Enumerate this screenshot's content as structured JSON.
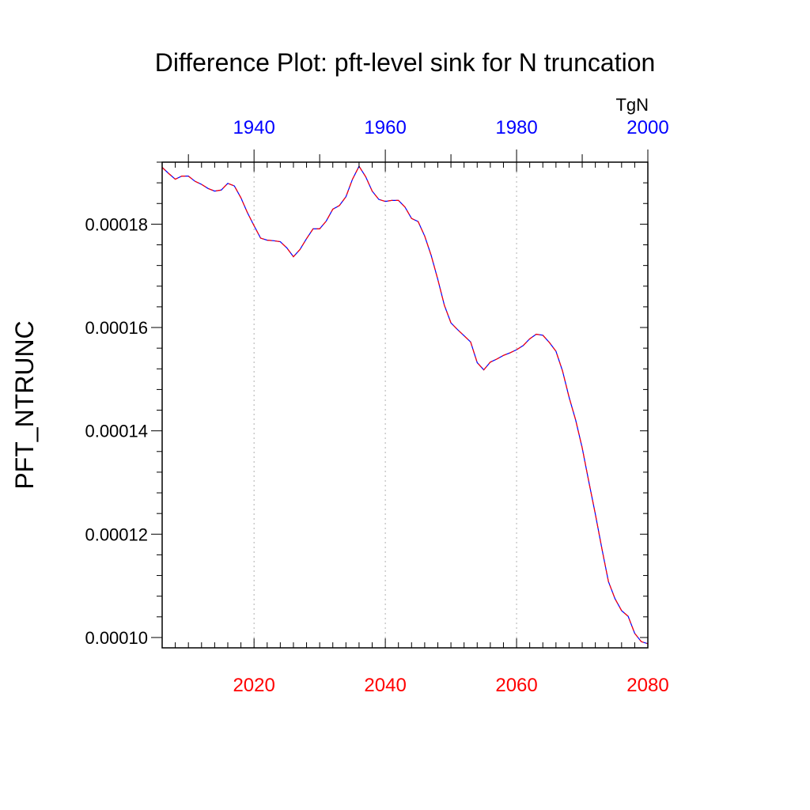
{
  "chart_data": {
    "type": "line",
    "title": "Difference Plot: pft-level sink for N truncation",
    "ylabel": "PFT_NTRUNC",
    "units": "TgN",
    "xlim": [
      2006,
      2080
    ],
    "ylim": [
      9.8e-05,
      0.000192
    ],
    "bottom_axis": {
      "ticks": [
        2020,
        2040,
        2060,
        2080
      ],
      "tick_labels": [
        "2020",
        "2040",
        "2060",
        "2080"
      ],
      "color": "#ff0000"
    },
    "top_axis": {
      "offset_years": -80,
      "ticks": [
        1940,
        1960,
        1980,
        2000
      ],
      "tick_labels": [
        "1940",
        "1960",
        "1980",
        "2000"
      ],
      "color": "#0000ff"
    },
    "y_ticks": [
      0.0001,
      0.00012,
      0.00014,
      0.00016,
      0.00018
    ],
    "y_tick_labels": [
      "0.00010",
      "0.00012",
      "0.00014",
      "0.00016",
      "0.00018"
    ],
    "grid": "vertical dashed at major bottom-axis ticks",
    "series": [
      {
        "color": "#0000ff",
        "dash": "solid",
        "x": [
          2006,
          2007,
          2008,
          2009,
          2010,
          2011,
          2012,
          2013,
          2014,
          2015,
          2016,
          2017,
          2018,
          2019,
          2020,
          2021,
          2022,
          2023,
          2024,
          2025,
          2026,
          2027,
          2028,
          2029,
          2030,
          2031,
          2032,
          2033,
          2034,
          2035,
          2036,
          2037,
          2038,
          2039,
          2040,
          2041,
          2042,
          2043,
          2044,
          2045,
          2046,
          2047,
          2048,
          2049,
          2050,
          2051,
          2052,
          2053,
          2054,
          2055,
          2056,
          2057,
          2058,
          2059,
          2060,
          2061,
          2062,
          2063,
          2064,
          2065,
          2066,
          2067,
          2068,
          2069,
          2070,
          2071,
          2072,
          2073,
          2074,
          2075,
          2076,
          2077,
          2078,
          2079,
          2080
        ],
        "y": [
          0.000191,
          0.0001898,
          0.0001887,
          0.0001893,
          0.0001893,
          0.0001883,
          0.0001877,
          0.0001869,
          0.0001864,
          0.0001866,
          0.0001879,
          0.0001874,
          0.0001851,
          0.0001822,
          0.0001797,
          0.0001773,
          0.0001769,
          0.0001768,
          0.0001766,
          0.0001754,
          0.0001737,
          0.0001751,
          0.0001772,
          0.0001791,
          0.0001791,
          0.0001806,
          0.0001829,
          0.0001836,
          0.0001853,
          0.0001887,
          0.0001912,
          0.0001892,
          0.0001864,
          0.0001848,
          0.0001844,
          0.0001846,
          0.0001846,
          0.0001833,
          0.0001811,
          0.0001805,
          0.0001777,
          0.0001739,
          0.0001693,
          0.0001643,
          0.0001609,
          0.0001596,
          0.0001584,
          0.0001572,
          0.0001532,
          0.0001518,
          0.0001533,
          0.0001539,
          0.0001546,
          0.0001551,
          0.0001557,
          0.0001565,
          0.0001578,
          0.0001587,
          0.0001585,
          0.0001571,
          0.0001554,
          0.0001516,
          0.0001465,
          0.0001421,
          0.0001367,
          0.0001302,
          0.0001239,
          0.0001172,
          0.0001108,
          0.0001075,
          0.0001052,
          0.0001041,
          0.0001008,
          9.92e-05,
          9.88e-05
        ]
      },
      {
        "color": "#ff0000",
        "dash": "dashed",
        "x": [
          2006,
          2007,
          2008,
          2009,
          2010,
          2011,
          2012,
          2013,
          2014,
          2015,
          2016,
          2017,
          2018,
          2019,
          2020,
          2021,
          2022,
          2023,
          2024,
          2025,
          2026,
          2027,
          2028,
          2029,
          2030,
          2031,
          2032,
          2033,
          2034,
          2035,
          2036,
          2037,
          2038,
          2039,
          2040,
          2041,
          2042,
          2043,
          2044,
          2045,
          2046,
          2047,
          2048,
          2049,
          2050,
          2051,
          2052,
          2053,
          2054,
          2055,
          2056,
          2057,
          2058,
          2059,
          2060,
          2061,
          2062,
          2063,
          2064,
          2065,
          2066,
          2067,
          2068,
          2069,
          2070,
          2071,
          2072,
          2073,
          2074,
          2075,
          2076,
          2077,
          2078,
          2079,
          2080
        ],
        "y": [
          0.000191,
          0.0001898,
          0.0001887,
          0.0001893,
          0.0001893,
          0.0001883,
          0.0001877,
          0.0001869,
          0.0001864,
          0.0001866,
          0.0001879,
          0.0001874,
          0.0001851,
          0.0001822,
          0.0001797,
          0.0001773,
          0.0001769,
          0.0001768,
          0.0001766,
          0.0001754,
          0.0001737,
          0.0001751,
          0.0001772,
          0.0001791,
          0.0001791,
          0.0001806,
          0.0001829,
          0.0001836,
          0.0001853,
          0.0001887,
          0.0001912,
          0.0001892,
          0.0001864,
          0.0001848,
          0.0001844,
          0.0001846,
          0.0001846,
          0.0001833,
          0.0001811,
          0.0001805,
          0.0001777,
          0.0001739,
          0.0001693,
          0.0001643,
          0.0001609,
          0.0001596,
          0.0001584,
          0.0001572,
          0.0001532,
          0.0001518,
          0.0001533,
          0.0001539,
          0.0001546,
          0.0001551,
          0.0001557,
          0.0001565,
          0.0001578,
          0.0001587,
          0.0001585,
          0.0001571,
          0.0001554,
          0.0001516,
          0.0001465,
          0.0001421,
          0.0001367,
          0.0001302,
          0.0001239,
          0.0001172,
          0.0001108,
          0.0001075,
          0.0001052,
          0.0001041,
          0.0001008,
          9.92e-05,
          9.88e-05
        ]
      }
    ]
  }
}
